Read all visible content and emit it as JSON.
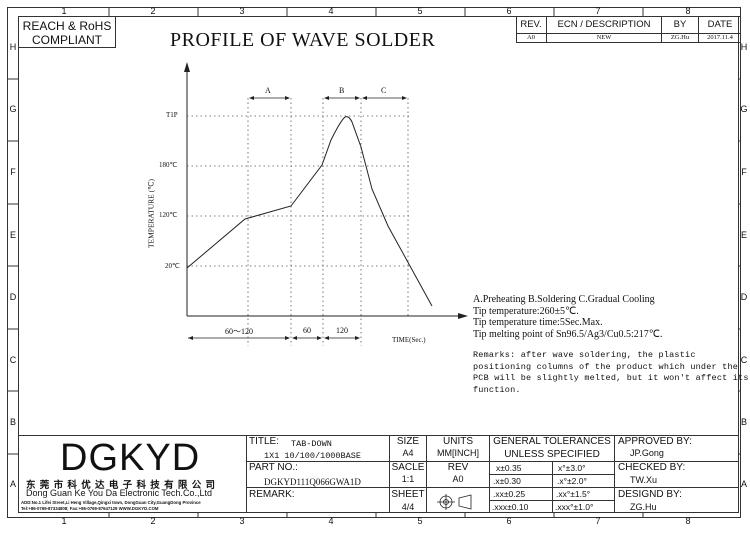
{
  "zones": {
    "columns": [
      "1",
      "2",
      "3",
      "4",
      "5",
      "6",
      "7",
      "8"
    ],
    "rows": [
      "H",
      "G",
      "F",
      "E",
      "D",
      "C",
      "B",
      "A"
    ]
  },
  "header": {
    "compliance_line1": "REACH & RoHS",
    "compliance_line2": "COMPLIANT",
    "title": "PROFILE OF WAVE SOLDER"
  },
  "revision_table": {
    "headers": [
      "REV.",
      "ECN / DESCRIPTION",
      "BY",
      "DATE"
    ],
    "row": [
      "A0",
      "NEW",
      "ZG.Hu",
      "2017.11.4"
    ]
  },
  "chart_data": {
    "type": "line",
    "title": "",
    "ylabel": "TEMPERATURE (℃)",
    "xlabel": "TIME(Sec.)",
    "y_ticks": [
      "20℃",
      "120℃",
      "180℃",
      "T1P"
    ],
    "phase_labels": [
      "A",
      "B",
      "C"
    ],
    "time_segments": [
      "60～120",
      "60",
      "120"
    ],
    "note": "profile curve rising through preheat to peak T1P then cooling"
  },
  "notes": {
    "legend": "A.Preheating  B.Soldering  C.Gradual Cooling",
    "line1": "Tip temperature:260±5℃.",
    "line2": "Tip temperature time:5Sec.Max.",
    "line3": "Tip melting point of Sn96.5/Ag3/Cu0.5:217℃."
  },
  "remarks": {
    "line1": "Remarks: after wave soldering, the plastic",
    "line2": "positioning columns of the product  which under the",
    "line3": "PCB will be slightly melted, but it won't affect its",
    "line4": "function."
  },
  "company": {
    "logo": "DGKYD",
    "name_cn": "东 莞 市 科 优 达 电 子 科 技 有 限 公 司",
    "name_en": "Dong Guan Ke You Da Electronic Tech.Co.,Ltd",
    "address": "ADD:No.1 Lifei Street,Li Heng Village,Qingxi town, DongGuan City,GuangDong Province",
    "contact": "Tel:+86-0769-87334808; Fax:+86-0769-87647129  WWW.DGKYD.COM"
  },
  "title_block": {
    "title_label": "TITLE:",
    "title_value_1": "TAB-DOWN",
    "title_value_2": "1X1 10/100/1000BASE",
    "part_label": "PART NO.:",
    "part_value": "DGKYD111Q066GWA1D",
    "remark_label": "REMARK:",
    "size_label": "SIZE",
    "size_value": "A4",
    "units_label": "UNITS",
    "units_value": "MM[INCH]",
    "scale_label": "SACLE",
    "scale_value": "1:1",
    "rev_label": "REV",
    "rev_value": "A0",
    "sheet_label": "SHEET",
    "sheet_value": "4/4",
    "tolerance_title_1": "GENERAL TOLERANCES",
    "tolerance_title_2": "UNLESS SPECIFIED",
    "tolerances": [
      [
        "x±0.35",
        "x°±3.0°"
      ],
      [
        ".x±0.30",
        ".x°±2.0°"
      ],
      [
        ".xx±0.25",
        ".xx°±1.5°"
      ],
      [
        ".xxx±0.10",
        ".xxx°±1.0°"
      ]
    ],
    "approved_label": "APPROVED BY:",
    "approved_value": "JP.Gong",
    "checked_label": "CHECKED BY:",
    "checked_value": "TW.Xu",
    "designed_label": "DESIGND BY:",
    "designed_value": "ZG.Hu"
  }
}
